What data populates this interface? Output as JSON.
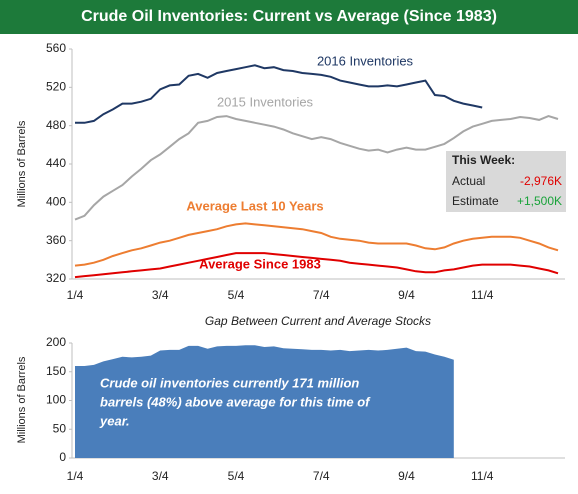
{
  "chart_data": [
    {
      "type": "line",
      "title": "Crude Oil Inventories: Current vs Average (Since 1983)",
      "ylabel": "Millions of Barrels",
      "categories": [
        "1/4",
        null,
        null,
        null,
        null,
        null,
        null,
        null,
        null,
        "3/4",
        null,
        null,
        null,
        null,
        null,
        null,
        null,
        "5/4",
        null,
        null,
        null,
        null,
        null,
        null,
        null,
        null,
        "7/4",
        null,
        null,
        null,
        null,
        null,
        null,
        null,
        null,
        "9/4",
        null,
        null,
        null,
        null,
        null,
        null,
        null,
        "11/4",
        null,
        null,
        null,
        null,
        null,
        null,
        null,
        null
      ],
      "ylim": [
        320,
        560
      ],
      "yticks": [
        320,
        360,
        400,
        440,
        480,
        520,
        560
      ],
      "grid": false,
      "series": [
        {
          "name": "2016 Inventories",
          "color": "#1f3864",
          "values": [
            483,
            483,
            485,
            492,
            497,
            503,
            503,
            505,
            508,
            518,
            522,
            523,
            532,
            534,
            530,
            535,
            537,
            539,
            541,
            543,
            540,
            541,
            538,
            537,
            535,
            534,
            533,
            531,
            527,
            525,
            523,
            521,
            521,
            522,
            521,
            523,
            525,
            527,
            512,
            511,
            506,
            503,
            501,
            499,
            null,
            null,
            null,
            null,
            null,
            null,
            null,
            null
          ]
        },
        {
          "name": "2015 Inventories",
          "color": "#a6a6a6",
          "values": [
            382,
            386,
            397,
            406,
            412,
            418,
            427,
            435,
            444,
            450,
            458,
            466,
            472,
            483,
            485,
            489,
            490,
            487,
            485,
            483,
            481,
            479,
            476,
            472,
            469,
            466,
            468,
            466,
            462,
            459,
            456,
            454,
            455,
            452,
            455,
            457,
            455,
            455,
            458,
            461,
            467,
            474,
            479,
            482,
            485,
            486,
            487,
            489,
            488,
            486,
            490,
            487
          ]
        },
        {
          "name": "Average Last 10 Years",
          "color": "#ed7d31",
          "values": [
            334,
            335,
            337,
            340,
            344,
            347,
            350,
            352,
            355,
            358,
            360,
            363,
            366,
            368,
            370,
            372,
            375,
            377,
            378,
            377,
            376,
            375,
            374,
            373,
            372,
            370,
            368,
            364,
            362,
            361,
            360,
            358,
            357,
            357,
            357,
            357,
            355,
            352,
            351,
            353,
            357,
            360,
            362,
            363,
            364,
            364,
            364,
            363,
            360,
            357,
            353,
            350
          ]
        },
        {
          "name": "Average Since 1983",
          "color": "#e00000",
          "values": [
            322,
            323,
            324,
            325,
            326,
            327,
            328,
            329,
            330,
            331,
            333,
            335,
            337,
            339,
            341,
            343,
            345,
            347,
            347,
            347,
            347,
            346,
            345,
            344,
            343,
            342,
            341,
            340,
            339,
            337,
            336,
            335,
            334,
            333,
            332,
            330,
            328,
            327,
            327,
            329,
            330,
            332,
            334,
            335,
            335,
            335,
            335,
            334,
            333,
            331,
            329,
            326
          ]
        }
      ],
      "table": {
        "title": "This Week:",
        "rows": [
          [
            "Actual",
            "-2,976K"
          ],
          [
            "Estimate",
            "+1,500K"
          ]
        ]
      }
    },
    {
      "type": "area",
      "title": "Gap Between Current and Average Stocks",
      "ylabel": "Millions of Barrels",
      "categories": [
        "1/4",
        null,
        null,
        null,
        null,
        null,
        null,
        null,
        null,
        "3/4",
        null,
        null,
        null,
        null,
        null,
        null,
        null,
        "5/4",
        null,
        null,
        null,
        null,
        null,
        null,
        null,
        null,
        "7/4",
        null,
        null,
        null,
        null,
        null,
        null,
        null,
        null,
        "9/4",
        null,
        null,
        null,
        null,
        null,
        null,
        null,
        "11/4",
        null,
        null,
        null,
        null,
        null,
        null,
        null,
        null
      ],
      "ylim": [
        0,
        200
      ],
      "yticks": [
        0,
        50,
        100,
        150,
        200
      ],
      "grid": false,
      "color": "#4a7ebb",
      "values": [
        160,
        160,
        162,
        168,
        172,
        176,
        175,
        176,
        178,
        187,
        188,
        188,
        195,
        195,
        190,
        194,
        195,
        195,
        196,
        196,
        193,
        194,
        191,
        190,
        189,
        188,
        188,
        187,
        188,
        186,
        187,
        188,
        187,
        188,
        190,
        192,
        186,
        185,
        180,
        176,
        171,
        null,
        null,
        null,
        null,
        null,
        null,
        null,
        null,
        null,
        null,
        null
      ],
      "annotation": [
        "Crude oil inventories currently 171 million",
        "barrels (48%) above average for this time of",
        "year."
      ]
    }
  ]
}
